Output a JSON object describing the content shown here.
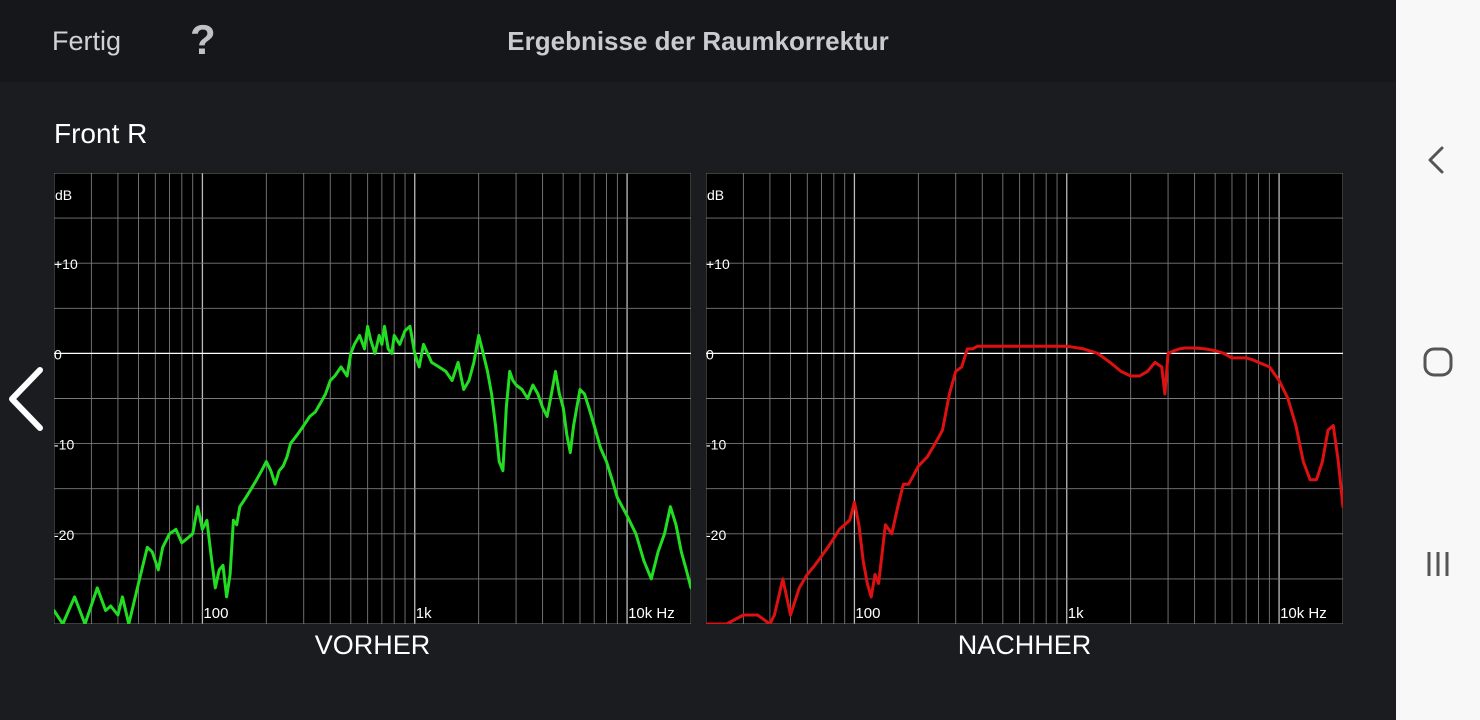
{
  "header": {
    "done_label": "Fertig",
    "help_glyph": "?",
    "title": "Ergebnisse der Raumkorrektur"
  },
  "channel_label": "Front R",
  "charts": [
    {
      "caption": "VORHER"
    },
    {
      "caption": "NACHHER"
    }
  ],
  "nav_icons": [
    "back-icon",
    "home-icon",
    "recents-icon"
  ],
  "chart_data": [
    {
      "type": "line",
      "title": "VORHER",
      "ylabel": "dB",
      "x_scale": "log",
      "xlim": [
        20,
        20000
      ],
      "ylim": [
        -30,
        20
      ],
      "x_tick_labels": [
        "100",
        "1k",
        "10k Hz"
      ],
      "y_tick_labels": [
        "+10",
        "0",
        "-10",
        "-20"
      ],
      "grid": true,
      "line_color": "#22dd22",
      "series": [
        {
          "x": [
            20,
            22,
            25,
            28,
            32,
            35,
            37,
            40,
            42,
            45,
            50,
            55,
            58,
            62,
            65,
            70,
            75,
            80,
            85,
            90,
            95,
            100,
            105,
            110,
            115,
            120,
            125,
            130,
            135,
            140,
            145,
            150,
            160,
            170,
            180,
            190,
            200,
            210,
            220,
            230,
            240,
            250,
            260,
            280,
            300,
            320,
            340,
            360,
            380,
            400,
            420,
            450,
            480,
            500,
            520,
            550,
            580,
            600,
            620,
            650,
            680,
            700,
            720,
            750,
            780,
            800,
            850,
            900,
            950,
            1000,
            1050,
            1100,
            1150,
            1200,
            1300,
            1400,
            1500,
            1600,
            1700,
            1800,
            1900,
            2000,
            2100,
            2200,
            2300,
            2400,
            2500,
            2600,
            2700,
            2800,
            2900,
            3000,
            3200,
            3400,
            3600,
            3800,
            4000,
            4200,
            4400,
            4600,
            4800,
            5000,
            5200,
            5400,
            5600,
            5800,
            6000,
            6300,
            6600,
            7000,
            7500,
            8000,
            8500,
            9000,
            10000,
            11000,
            12000,
            13000,
            14000,
            15000,
            16000,
            17000,
            18000,
            19000,
            20000
          ],
          "y": [
            -28.5,
            -30,
            -27,
            -30,
            -26,
            -28.5,
            -28,
            -29,
            -27,
            -30,
            -25.5,
            -21.5,
            -22,
            -24,
            -21.5,
            -20,
            -19.5,
            -21,
            -20.5,
            -20,
            -17,
            -19.5,
            -18.5,
            -22.5,
            -26,
            -24,
            -23.5,
            -27,
            -24.5,
            -18.5,
            -19,
            -17,
            -16,
            -15,
            -14,
            -13,
            -12,
            -13,
            -14.5,
            -13,
            -12.5,
            -11.5,
            -10,
            -9,
            -8,
            -7,
            -6.5,
            -5.5,
            -4.5,
            -3,
            -2.5,
            -1.5,
            -2.5,
            0,
            1,
            2,
            0.5,
            3,
            1.5,
            0,
            2,
            1,
            3,
            0.5,
            0,
            2,
            1,
            2.5,
            3,
            0,
            -1.5,
            1,
            0,
            -1,
            -1.5,
            -2,
            -3,
            -1,
            -4,
            -3,
            -1,
            2,
            0,
            -2,
            -4.5,
            -8,
            -12,
            -13,
            -6,
            -2,
            -3,
            -3.5,
            -4,
            -5,
            -3.5,
            -4.5,
            -6,
            -7,
            -4.5,
            -2,
            -4.5,
            -6,
            -9,
            -11,
            -8,
            -6,
            -4,
            -4.5,
            -6,
            -8,
            -10.5,
            -12,
            -14,
            -16,
            -18,
            -20,
            -23,
            -25,
            -22,
            -20,
            -17,
            -19,
            -22,
            -24,
            -26
          ]
        }
      ]
    },
    {
      "type": "line",
      "title": "NACHHER",
      "ylabel": "dB",
      "x_scale": "log",
      "xlim": [
        20,
        20000
      ],
      "ylim": [
        -30,
        20
      ],
      "x_tick_labels": [
        "100",
        "1k",
        "10k Hz"
      ],
      "y_tick_labels": [
        "+10",
        "0",
        "-10",
        "-20"
      ],
      "grid": true,
      "line_color": "#dd1111",
      "series": [
        {
          "x": [
            20,
            25,
            30,
            35,
            40,
            42,
            44,
            46,
            48,
            50,
            55,
            60,
            65,
            70,
            75,
            80,
            85,
            90,
            95,
            100,
            105,
            110,
            115,
            120,
            125,
            130,
            140,
            150,
            160,
            170,
            180,
            190,
            200,
            220,
            240,
            260,
            280,
            300,
            320,
            340,
            360,
            380,
            400,
            450,
            500,
            600,
            700,
            800,
            900,
            1000,
            1200,
            1400,
            1600,
            1800,
            2000,
            2200,
            2400,
            2600,
            2800,
            2900,
            3000,
            3200,
            3400,
            3600,
            4000,
            4500,
            5000,
            5500,
            6000,
            6500,
            7000,
            7500,
            8000,
            9000,
            10000,
            11000,
            12000,
            13000,
            14000,
            15000,
            16000,
            17000,
            18000,
            19000,
            20000
          ],
          "y": [
            -30,
            -30,
            -29,
            -29,
            -30,
            -29,
            -27,
            -25,
            -27,
            -29,
            -26,
            -24.5,
            -23.5,
            -22.5,
            -21.5,
            -20.5,
            -19.5,
            -19,
            -18.5,
            -16.5,
            -19,
            -23,
            -25.5,
            -27,
            -24.5,
            -25.5,
            -19,
            -20,
            -17,
            -14.5,
            -14.5,
            -13.5,
            -12.5,
            -11.5,
            -10,
            -8.5,
            -4.5,
            -2,
            -1.5,
            0.5,
            0.5,
            0.8,
            0.8,
            0.8,
            0.8,
            0.8,
            0.8,
            0.8,
            0.8,
            0.8,
            0.5,
            0,
            -1,
            -2,
            -2.5,
            -2.5,
            -2,
            -1,
            -1.5,
            -4.5,
            0,
            0.3,
            0.5,
            0.6,
            0.6,
            0.5,
            0.3,
            0,
            -0.5,
            -0.5,
            -0.5,
            -0.7,
            -1,
            -1.5,
            -3,
            -5,
            -8,
            -12,
            -14,
            -14,
            -12,
            -8.5,
            -8,
            -12,
            -17
          ]
        }
      ]
    }
  ]
}
